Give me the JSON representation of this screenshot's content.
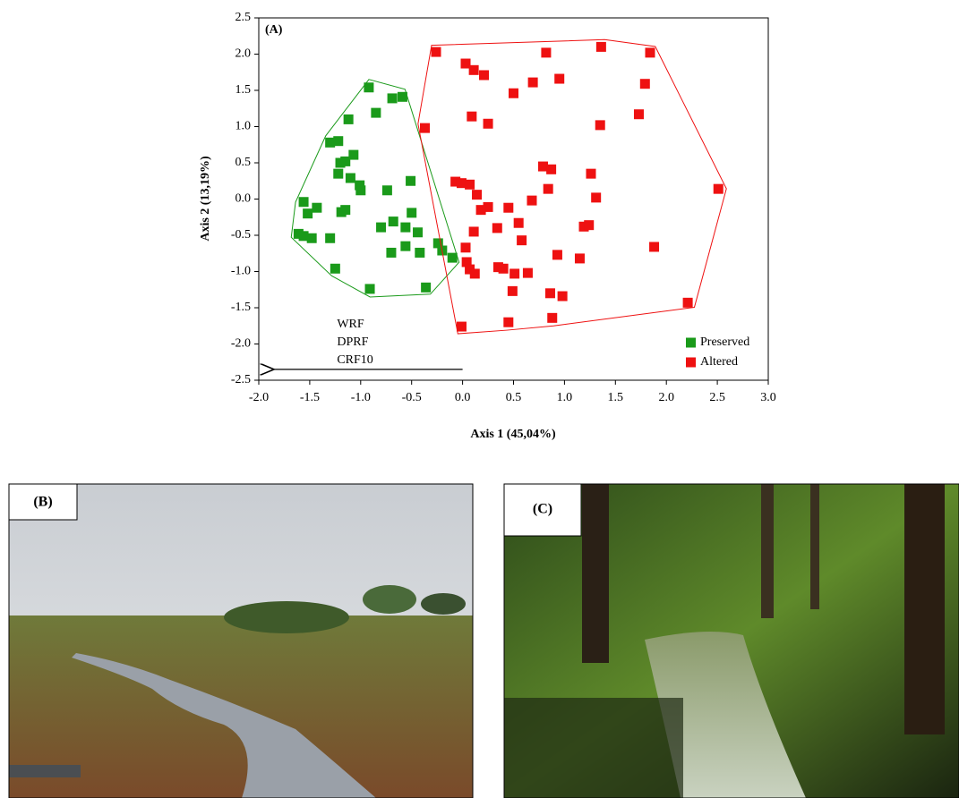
{
  "chart_data": {
    "type": "scatter",
    "title": "(A)",
    "xlabel": "Axis 1 (45,04%)",
    "ylabel": "Axis 2 (13,19%)",
    "xlim": [
      -2,
      3
    ],
    "ylim": [
      -2.5,
      2.5
    ],
    "xticks": [
      {
        "value": -2,
        "label": "-2.0"
      },
      -1.5,
      {
        "value": -1,
        "label": "-1.0"
      },
      -0.5,
      {
        "value": 0,
        "label": "0.0"
      },
      0.5,
      {
        "value": 1,
        "label": "1.0"
      },
      1.5,
      {
        "value": 2,
        "label": "2.0"
      },
      2.5,
      {
        "value": 3,
        "label": "3.0"
      }
    ],
    "yticks": [
      2.5,
      {
        "value": 2,
        "label": "2.0"
      },
      1.5,
      {
        "value": 1,
        "label": "1.0"
      },
      0.5,
      {
        "value": 0,
        "label": "0.0"
      },
      -0.5,
      {
        "value": -1,
        "label": "-1.0"
      },
      -1.5,
      {
        "value": -2,
        "label": "-2.0"
      },
      -2.5
    ],
    "legend": "lower right",
    "hulls": true,
    "series": [
      {
        "name": "Preserved",
        "color": "#1a9a1a",
        "x": [
          -0.92,
          -0.69,
          -0.59,
          -0.85,
          -1.12,
          -1.3,
          -1.22,
          -1.07,
          -1.2,
          -1.15,
          -1.22,
          -1.1,
          -1.01,
          -1.0,
          -0.74,
          -0.51,
          -1.56,
          -1.43,
          -1.52,
          -1.15,
          -1.19,
          -0.5,
          -0.68,
          -0.56,
          -0.8,
          -0.44,
          -1.61,
          -1.56,
          -1.48,
          -1.3,
          -0.56,
          -0.7,
          -0.42,
          -0.24,
          -0.2,
          -0.1,
          -1.25,
          -0.91,
          -0.36
        ],
        "values": [
          1.54,
          1.39,
          1.41,
          1.19,
          1.1,
          0.78,
          0.8,
          0.61,
          0.5,
          0.52,
          0.35,
          0.29,
          0.19,
          0.12,
          0.12,
          0.25,
          -0.04,
          -0.12,
          -0.2,
          -0.15,
          -0.18,
          -0.19,
          -0.31,
          -0.39,
          -0.39,
          -0.46,
          -0.48,
          -0.51,
          -0.54,
          -0.54,
          -0.65,
          -0.74,
          -0.74,
          -0.61,
          -0.71,
          -0.81,
          -0.96,
          -1.24,
          -1.22
        ]
      },
      {
        "name": "Altered",
        "color": "#ee1111",
        "x": [
          -0.26,
          0.03,
          0.11,
          0.21,
          0.82,
          1.36,
          1.84,
          0.69,
          0.5,
          0.95,
          1.79,
          0.09,
          0.25,
          -0.37,
          1.35,
          1.73,
          0.79,
          0.87,
          1.26,
          -0.07,
          -0.01,
          0.07,
          0.84,
          0.14,
          0.68,
          1.31,
          2.51,
          0.25,
          0.18,
          0.45,
          0.55,
          0.34,
          1.19,
          1.24,
          0.11,
          0.03,
          0.58,
          1.88,
          0.04,
          0.07,
          0.12,
          0.35,
          0.4,
          0.64,
          0.51,
          0.93,
          1.15,
          0.49,
          0.86,
          0.98,
          0.88,
          0.45,
          -0.01,
          2.21
        ],
        "values": [
          2.03,
          1.87,
          1.78,
          1.71,
          2.02,
          2.1,
          2.02,
          1.61,
          1.46,
          1.66,
          1.59,
          1.14,
          1.04,
          0.98,
          1.02,
          1.17,
          0.45,
          0.41,
          0.35,
          0.24,
          0.22,
          0.2,
          0.14,
          0.06,
          -0.02,
          0.02,
          0.14,
          -0.11,
          -0.15,
          -0.12,
          -0.33,
          -0.4,
          -0.38,
          -0.36,
          -0.45,
          -0.67,
          -0.57,
          -0.66,
          -0.87,
          -0.97,
          -1.03,
          -0.94,
          -0.96,
          -1.02,
          -1.03,
          -0.77,
          -0.82,
          -1.27,
          -1.3,
          -1.34,
          -1.64,
          -1.7,
          -1.76,
          -1.43
        ]
      }
    ],
    "arrow": {
      "labels": [
        "WRF",
        "DPRF",
        "CRF10"
      ],
      "x": [
        0,
        -1.85
      ],
      "y": [
        -2.35,
        -2.35
      ]
    }
  },
  "photos": [
    {
      "label": "(B)"
    },
    {
      "label": "(C)"
    }
  ]
}
